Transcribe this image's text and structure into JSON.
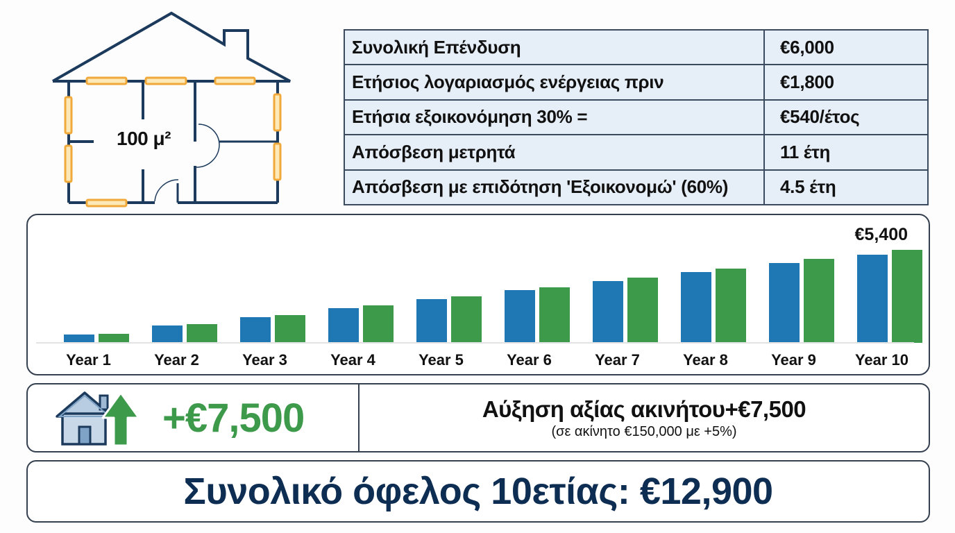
{
  "floorplan": {
    "area_label": "100 μ²",
    "colors": {
      "wall": "#1b3a5c",
      "insulation": "#f0a93a",
      "insulation_fill": "#fde9b8"
    }
  },
  "table": {
    "rows": [
      {
        "label": "Συνολική Επένδυση",
        "value": "€6,000"
      },
      {
        "label": "Ετήσιος λογαριασμός ενέργειας πριν",
        "value": "€1,800"
      },
      {
        "label": "Ετήσια εξοικονόμηση 30% =",
        "value": "€540/έτος"
      },
      {
        "label": "Απόσβεση μετρητά",
        "value": "11 έτη"
      },
      {
        "label": "Απόσβεση με επιδότηση 'Εξοικονομώ' (60%)",
        "value": "4.5 έτη"
      }
    ]
  },
  "chart_data": {
    "type": "bar",
    "title": "",
    "xlabel": "",
    "ylabel": "",
    "categories": [
      "Year 1",
      "Year 2",
      "Year 3",
      "Year 4",
      "Year 5",
      "Year 6",
      "Year 7",
      "Year 8",
      "Year 9",
      "Year 10"
    ],
    "series": [
      {
        "name": "blue",
        "color": "#1f77b4",
        "values": [
          500,
          1000,
          1500,
          2000,
          2550,
          3050,
          3600,
          4100,
          4650,
          5100
        ]
      },
      {
        "name": "green",
        "color": "#3e9a4b",
        "values": [
          540,
          1080,
          1620,
          2160,
          2700,
          3240,
          3780,
          4320,
          4860,
          5400
        ]
      }
    ],
    "annotations": [
      {
        "category": "Year 10",
        "series": "green",
        "text": "€5,400"
      }
    ],
    "ylim": [
      0,
      5400
    ],
    "grid": false,
    "legend": "none"
  },
  "value_card": {
    "amount": "+€7,500",
    "title": "Αύξηση αξίας ακινήτου+€7,500",
    "subtitle": "(σε ακίνητο €150,000 με +5%)",
    "icon": "house-up-arrow-icon",
    "accent_color": "#3e9a4b"
  },
  "total": {
    "text": "Συνολικό όφελος 10ετίας: €12,900",
    "color": "#0d2d52"
  }
}
